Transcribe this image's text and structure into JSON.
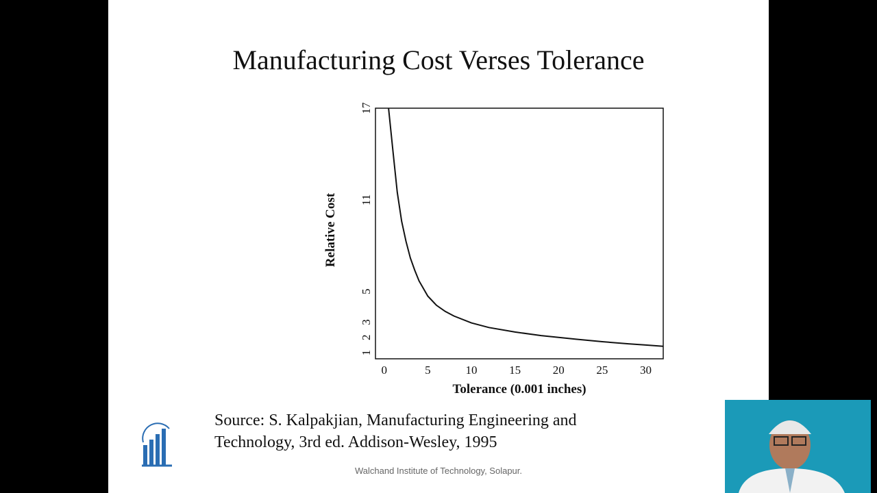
{
  "slide": {
    "title": "Manufacturing Cost Verses Tolerance",
    "source_line1": "Source: S. Kalpakjian, Manufacturing Engineering and",
    "source_line2": "Technology, 3rd ed. Addison-Wesley, 1995",
    "footer": "Walchand Institute of Technology, Solapur."
  },
  "colors": {
    "background": "#000000",
    "slide": "#ffffff",
    "curve": "#111111",
    "webcam_bg": "#1b9ab8"
  },
  "icons": {
    "logo": "institute-logo",
    "presenter": "presenter-webcam"
  },
  "chart_data": {
    "type": "line",
    "title": "",
    "xlabel": "Tolerance (0.001 inches)",
    "ylabel": "Relative Cost",
    "xlim": [
      -1,
      32
    ],
    "ylim": [
      0.6,
      17
    ],
    "xticks": [
      0,
      5,
      10,
      15,
      20,
      25,
      30
    ],
    "yticks": [
      1,
      2,
      3,
      5,
      11,
      17
    ],
    "grid": false,
    "series": [
      {
        "x": [
          0.5,
          1.0,
          1.5,
          2.0,
          2.5,
          3.0,
          3.5,
          4.0,
          5.0,
          6.0,
          7.0,
          8.0,
          10.0,
          12.0,
          15.0,
          18.0,
          20.0,
          22.0,
          25.0,
          28.0,
          30.0,
          32.0
        ],
        "values": [
          17.0,
          14.2,
          11.5,
          9.6,
          8.3,
          7.2,
          6.4,
          5.7,
          4.7,
          4.1,
          3.7,
          3.4,
          2.95,
          2.65,
          2.35,
          2.12,
          2.0,
          1.88,
          1.72,
          1.58,
          1.5,
          1.42
        ]
      }
    ]
  }
}
